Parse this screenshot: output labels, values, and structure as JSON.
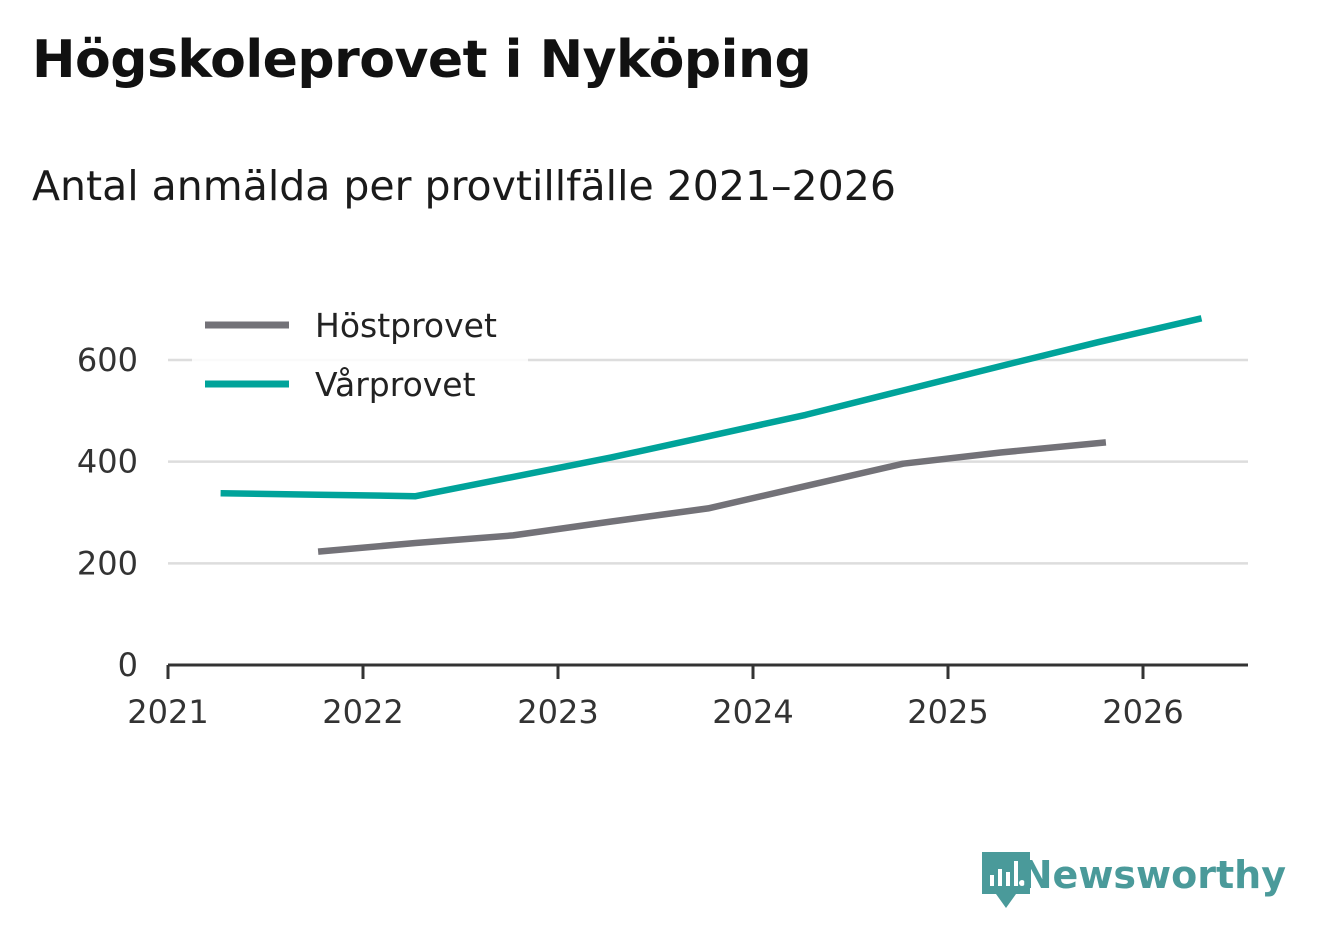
{
  "title": "Högskoleprovet i Nyköping",
  "subtitle": "Antal anmälda per provtillfälle 2021–2026",
  "brand": {
    "name": "Newsworthy",
    "color": "#4a9a9a",
    "icon": "newsworthy-logo-icon"
  },
  "colors": {
    "grid": "#dddddd",
    "axis": "#333333"
  },
  "chart_data": {
    "type": "line",
    "title": "Högskoleprovet i Nyköping",
    "subtitle": "Antal anmälda per provtillfälle 2021–2026",
    "xlabel": "",
    "ylabel": "",
    "xlim": [
      2021,
      2026.55
    ],
    "ylim": [
      0,
      700
    ],
    "xticks": [
      "2021",
      "2022",
      "2023",
      "2024",
      "2025",
      "2026"
    ],
    "yticks": [
      "0",
      "200",
      "400",
      "600"
    ],
    "grid": true,
    "legend_position": "top-left",
    "series": [
      {
        "name": "Höstprovet",
        "color": "#737278",
        "x": [
          2021.77,
          2022.27,
          2022.77,
          2023.27,
          2023.77,
          2024.27,
          2024.77,
          2025.27,
          2025.81
        ],
        "values": [
          223,
          240,
          255,
          282,
          308,
          352,
          396,
          418,
          438
        ]
      },
      {
        "name": "Vårprovet",
        "color": "#00a39a",
        "x": [
          2021.27,
          2021.77,
          2022.27,
          2022.77,
          2023.27,
          2023.77,
          2024.27,
          2024.77,
          2025.27,
          2025.77,
          2026.3
        ],
        "values": [
          338,
          335,
          332,
          370,
          408,
          450,
          492,
          540,
          588,
          635,
          682
        ]
      }
    ]
  }
}
